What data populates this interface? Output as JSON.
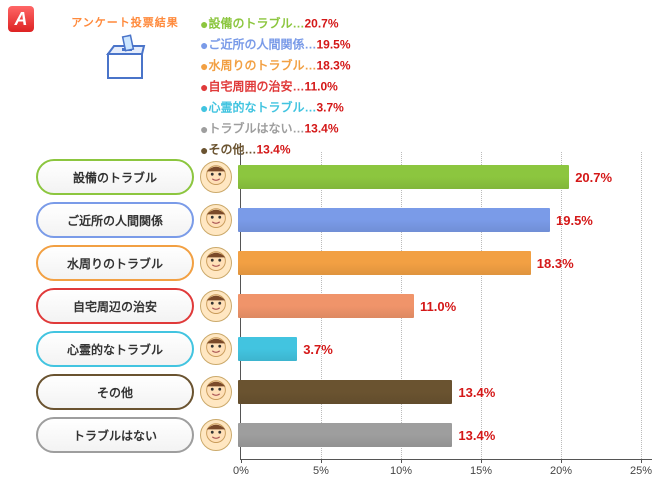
{
  "badge": "A",
  "header_label": "アンケート投票結果",
  "legend": [
    {
      "label": "設備のトラブル",
      "pct": "20.7%",
      "color": "#8cc63f"
    },
    {
      "label": "ご近所の人間関係",
      "pct": "19.5%",
      "color": "#7a9be8"
    },
    {
      "label": "水周りのトラブル",
      "pct": "18.3%",
      "color": "#f2a043"
    },
    {
      "label": "自宅周囲の治安",
      "pct": "11.0%",
      "color": "#e03a3a"
    },
    {
      "label": "心霊的なトラブル",
      "pct": "3.7%",
      "color": "#42c4e0"
    },
    {
      "label": "トラブルはない",
      "pct": "13.4%",
      "color": "#9e9e9e"
    },
    {
      "label": "その他",
      "pct": "13.4%",
      "color": "#6a5330"
    }
  ],
  "chart": {
    "type": "bar_horizontal",
    "xmax": 25,
    "xtick_step": 5,
    "xticks": [
      "0%",
      "5%",
      "10%",
      "15%",
      "20%",
      "25%"
    ],
    "grid_color": "#bbbbbb",
    "axis_color": "#555555",
    "pct_color": "#d41818",
    "rows": [
      {
        "label": "設備のトラブル",
        "value": 20.7,
        "pct": "20.7%",
        "bar_color": "#8cc63f",
        "pill_border": "#8cc63f"
      },
      {
        "label": "ご近所の人間関係",
        "value": 19.5,
        "pct": "19.5%",
        "bar_color": "#7a9be8",
        "pill_border": "#7a9be8"
      },
      {
        "label": "水周りのトラブル",
        "value": 18.3,
        "pct": "18.3%",
        "bar_color": "#f2a043",
        "pill_border": "#f2a043"
      },
      {
        "label": "自宅周辺の治安",
        "value": 11.0,
        "pct": "11.0%",
        "bar_color": "#f0946a",
        "pill_border": "#e03a3a"
      },
      {
        "label": "心霊的なトラブル",
        "value": 3.7,
        "pct": "3.7%",
        "bar_color": "#42c4e0",
        "pill_border": "#42c4e0"
      },
      {
        "label": "その他",
        "value": 13.4,
        "pct": "13.4%",
        "bar_color": "#6a5330",
        "pill_border": "#6a5330"
      },
      {
        "label": "トラブルはない",
        "value": 13.4,
        "pct": "13.4%",
        "bar_color": "#9e9e9e",
        "pill_border": "#9e9e9e"
      }
    ]
  }
}
